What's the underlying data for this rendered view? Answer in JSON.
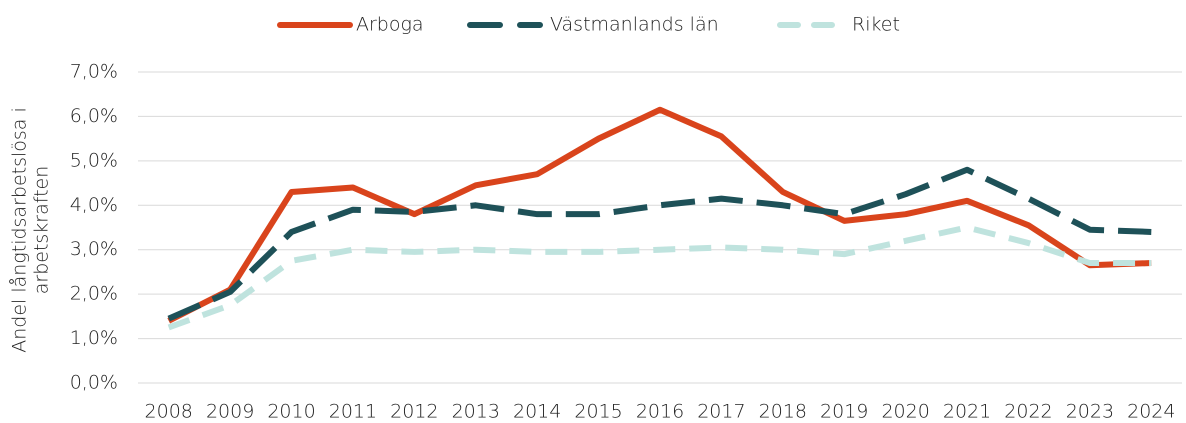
{
  "chart_data": {
    "type": "line",
    "y_label": [
      "Andel långtidsarbetslösa i",
      "arbetskraften"
    ],
    "categories": [
      "2008",
      "2009",
      "2010",
      "2011",
      "2012",
      "2013",
      "2014",
      "2015",
      "2016",
      "2017",
      "2018",
      "2019",
      "2020",
      "2021",
      "2022",
      "2023",
      "2024"
    ],
    "series": [
      {
        "name": "Arboga",
        "color": "#d9441c",
        "dash": "solid",
        "values": [
          1.4,
          2.1,
          4.3,
          4.4,
          3.8,
          4.45,
          4.7,
          5.5,
          6.15,
          5.55,
          4.3,
          3.65,
          3.8,
          4.1,
          3.55,
          2.65,
          2.7
        ]
      },
      {
        "name": "Västmanlands län",
        "color": "#1e5158",
        "dash": "long",
        "values": [
          1.45,
          2.05,
          3.4,
          3.9,
          3.85,
          4.0,
          3.8,
          3.8,
          4.0,
          4.15,
          4.0,
          3.8,
          4.25,
          4.8,
          4.15,
          3.45,
          3.4
        ]
      },
      {
        "name": "Riket",
        "color": "#bfe3de",
        "dash": "medium",
        "values": [
          1.25,
          1.75,
          2.75,
          3.0,
          2.95,
          3.0,
          2.95,
          2.95,
          3.0,
          3.05,
          3.0,
          2.9,
          3.2,
          3.5,
          3.15,
          2.7,
          2.7
        ]
      }
    ],
    "ylim": [
      0,
      7
    ],
    "yticks": [
      {
        "value": 0,
        "label": "0,0%"
      },
      {
        "value": 1,
        "label": "1,0%"
      },
      {
        "value": 2,
        "label": "2,0%"
      },
      {
        "value": 3,
        "label": "3,0%"
      },
      {
        "value": 4,
        "label": "4,0%"
      },
      {
        "value": 5,
        "label": "5,0%"
      },
      {
        "value": 6,
        "label": "6,0%"
      },
      {
        "value": 7,
        "label": "7,0%"
      }
    ],
    "grid": true,
    "legend": "top"
  }
}
